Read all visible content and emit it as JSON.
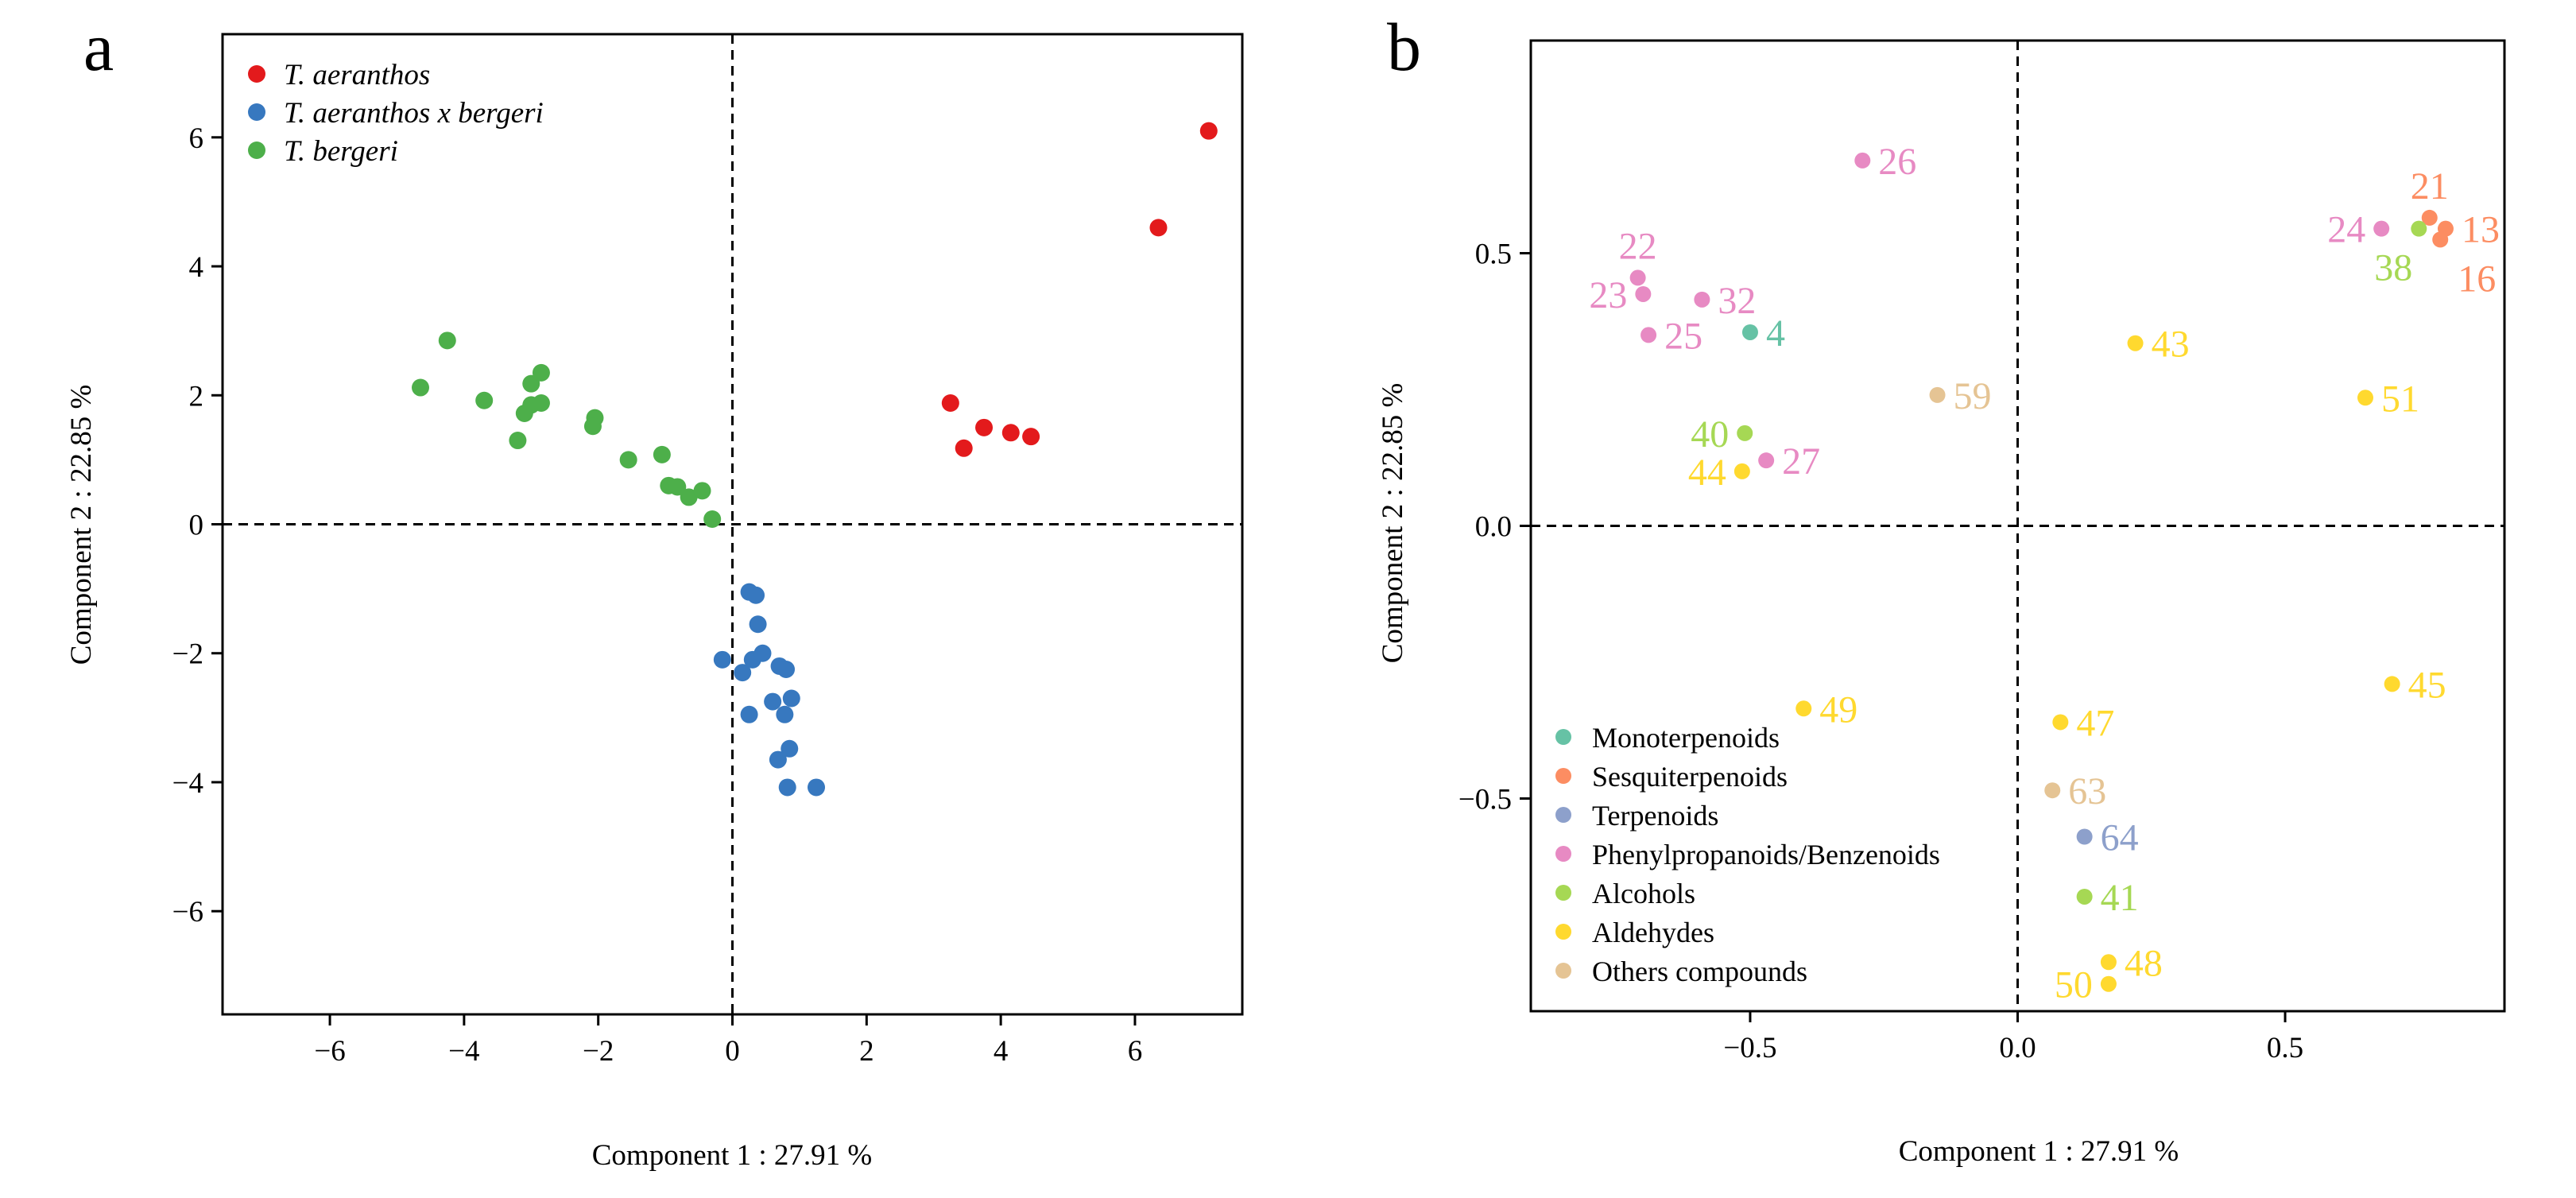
{
  "chart_data": [
    {
      "panel_label": "a",
      "type": "scatter",
      "title": "",
      "xlabel": "Component 1 : 27.91 %",
      "ylabel": "Component 2 : 22.85 %",
      "xlim": [
        -7.6,
        7.6
      ],
      "ylim": [
        -7.6,
        7.6
      ],
      "xticks": [
        -6,
        -4,
        -2,
        0,
        2,
        4,
        6
      ],
      "yticks": [
        -6,
        -4,
        -2,
        0,
        2,
        4,
        6
      ],
      "grid": false,
      "legend_position": "top-left",
      "series": [
        {
          "name": "T. aeranthos",
          "color": "#e31a1c",
          "points": [
            [
              7.1,
              6.1
            ],
            [
              6.35,
              4.6
            ],
            [
              3.25,
              1.88
            ],
            [
              3.45,
              1.18
            ],
            [
              3.75,
              1.5
            ],
            [
              4.15,
              1.42
            ],
            [
              4.45,
              1.36
            ]
          ]
        },
        {
          "name": "T. aeranthos x bergeri",
          "color": "#3778bf",
          "points": [
            [
              0.25,
              -1.05
            ],
            [
              0.35,
              -1.1
            ],
            [
              0.38,
              -1.55
            ],
            [
              -0.15,
              -2.1
            ],
            [
              0.15,
              -2.3
            ],
            [
              0.3,
              -2.1
            ],
            [
              0.45,
              -2.0
            ],
            [
              0.7,
              -2.2
            ],
            [
              0.8,
              -2.25
            ],
            [
              0.6,
              -2.75
            ],
            [
              0.78,
              -2.95
            ],
            [
              0.88,
              -2.7
            ],
            [
              0.25,
              -2.95
            ],
            [
              0.85,
              -3.48
            ],
            [
              0.68,
              -3.65
            ],
            [
              0.82,
              -4.08
            ],
            [
              1.25,
              -4.08
            ]
          ]
        },
        {
          "name": "T. bergeri",
          "color": "#4daf4a",
          "points": [
            [
              -4.25,
              2.85
            ],
            [
              -4.65,
              2.12
            ],
            [
              -3.7,
              1.92
            ],
            [
              -3.2,
              1.3
            ],
            [
              -3.1,
              1.72
            ],
            [
              -3.0,
              1.85
            ],
            [
              -2.85,
              1.88
            ],
            [
              -3.0,
              2.18
            ],
            [
              -2.85,
              2.35
            ],
            [
              -2.05,
              1.65
            ],
            [
              -2.08,
              1.52
            ],
            [
              -1.55,
              1.0
            ],
            [
              -1.05,
              1.08
            ],
            [
              -0.95,
              0.6
            ],
            [
              -0.82,
              0.58
            ],
            [
              -0.65,
              0.42
            ],
            [
              -0.45,
              0.52
            ],
            [
              -0.3,
              0.08
            ]
          ]
        }
      ]
    },
    {
      "panel_label": "b",
      "type": "scatter",
      "title": "",
      "xlabel": "Component 1 : 27.91 %",
      "ylabel": "Component 2 : 22.85 %",
      "xlim": [
        -0.91,
        0.91
      ],
      "ylim": [
        -0.89,
        0.89
      ],
      "xticks": [
        -0.5,
        0.0,
        0.5
      ],
      "xtick_labels": [
        "−0.5",
        "0.0",
        "0.5"
      ],
      "yticks": [
        -0.5,
        0.0,
        0.5
      ],
      "ytick_labels": [
        "−0.5",
        "0.0",
        "0.5"
      ],
      "grid": false,
      "legend_position": "bottom-left",
      "categories": [
        {
          "name": "Monoterpenoids",
          "color": "#66c2a5"
        },
        {
          "name": "Sesquiterpenoids",
          "color": "#fc8d62"
        },
        {
          "name": "Terpenoids",
          "color": "#8da0cb"
        },
        {
          "name": "Phenylpropanoids/Benzenoids",
          "color": "#e78ac3"
        },
        {
          "name": "Alcohols",
          "color": "#a6d854"
        },
        {
          "name": "Aldehydes",
          "color": "#ffd92f"
        },
        {
          "name": "Others compounds",
          "color": "#e5c494"
        }
      ],
      "points": [
        {
          "label": "26",
          "category": "Phenylpropanoids/Benzenoids",
          "x": -0.29,
          "y": 0.67,
          "label_pos": "right"
        },
        {
          "label": "22",
          "category": "Phenylpropanoids/Benzenoids",
          "x": -0.71,
          "y": 0.455,
          "label_pos": "above"
        },
        {
          "label": "23",
          "category": "Phenylpropanoids/Benzenoids",
          "x": -0.7,
          "y": 0.425,
          "label_pos": "left"
        },
        {
          "label": "32",
          "category": "Phenylpropanoids/Benzenoids",
          "x": -0.59,
          "y": 0.415,
          "label_pos": "right"
        },
        {
          "label": "25",
          "category": "Phenylpropanoids/Benzenoids",
          "x": -0.69,
          "y": 0.35,
          "label_pos": "right"
        },
        {
          "label": "4",
          "category": "Monoterpenoids",
          "x": -0.5,
          "y": 0.355,
          "label_pos": "right"
        },
        {
          "label": "59",
          "category": "Others compounds",
          "x": -0.15,
          "y": 0.24,
          "label_pos": "right"
        },
        {
          "label": "40",
          "category": "Alcohols",
          "x": -0.51,
          "y": 0.17,
          "label_pos": "left"
        },
        {
          "label": "27",
          "category": "Phenylpropanoids/Benzenoids",
          "x": -0.47,
          "y": 0.12,
          "label_pos": "right"
        },
        {
          "label": "44",
          "category": "Aldehydes",
          "x": -0.515,
          "y": 0.1,
          "label_pos": "left"
        },
        {
          "label": "43",
          "category": "Aldehydes",
          "x": 0.22,
          "y": 0.335,
          "label_pos": "right"
        },
        {
          "label": "21",
          "category": "Sesquiterpenoids",
          "x": 0.77,
          "y": 0.565,
          "label_pos": "above"
        },
        {
          "label": "13",
          "category": "Sesquiterpenoids",
          "x": 0.8,
          "y": 0.545,
          "label_pos": "right"
        },
        {
          "label": "16",
          "category": "Sesquiterpenoids",
          "x": 0.79,
          "y": 0.525,
          "label_pos": "below-right"
        },
        {
          "label": "24",
          "category": "Phenylpropanoids/Benzenoids",
          "x": 0.68,
          "y": 0.545,
          "label_pos": "left"
        },
        {
          "label": "38",
          "category": "Alcohols",
          "x": 0.75,
          "y": 0.545,
          "label_pos": "below-left"
        },
        {
          "label": "51",
          "category": "Aldehydes",
          "x": 0.65,
          "y": 0.235,
          "label_pos": "right"
        },
        {
          "label": "45",
          "category": "Aldehydes",
          "x": 0.7,
          "y": -0.29,
          "label_pos": "right"
        },
        {
          "label": "49",
          "category": "Aldehydes",
          "x": -0.4,
          "y": -0.335,
          "label_pos": "right"
        },
        {
          "label": "47",
          "category": "Aldehydes",
          "x": 0.08,
          "y": -0.36,
          "label_pos": "right"
        },
        {
          "label": "63",
          "category": "Others compounds",
          "x": 0.065,
          "y": -0.485,
          "label_pos": "right"
        },
        {
          "label": "64",
          "category": "Terpenoids",
          "x": 0.125,
          "y": -0.57,
          "label_pos": "right"
        },
        {
          "label": "41",
          "category": "Alcohols",
          "x": 0.125,
          "y": -0.68,
          "label_pos": "right"
        },
        {
          "label": "48",
          "category": "Aldehydes",
          "x": 0.17,
          "y": -0.8,
          "label_pos": "right"
        },
        {
          "label": "50",
          "category": "Aldehydes",
          "x": 0.17,
          "y": -0.84,
          "label_pos": "left"
        }
      ]
    }
  ]
}
